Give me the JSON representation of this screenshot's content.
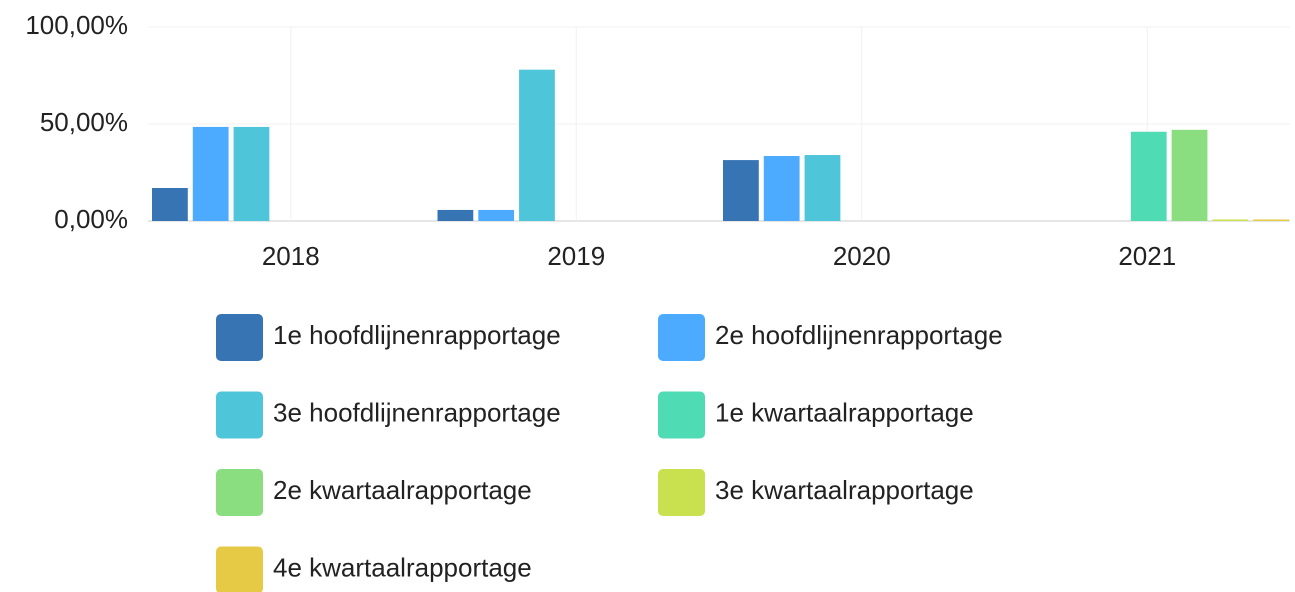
{
  "chart_data": {
    "type": "bar",
    "categories": [
      "2018",
      "2019",
      "2020",
      "2021"
    ],
    "series": [
      {
        "name": "1e hoofdlijnenrapportage",
        "color": "#3674b4",
        "values": [
          17,
          5.7,
          31.4,
          null
        ]
      },
      {
        "name": "2e hoofdlijnenrapportage",
        "color": "#4dabff",
        "values": [
          48.5,
          5.7,
          33.5,
          null
        ]
      },
      {
        "name": "3e hoofdlijnenrapportage",
        "color": "#4fc5d9",
        "values": [
          48.5,
          78,
          34,
          null
        ]
      },
      {
        "name": "1e kwartaalrapportage",
        "color": "#4fdbb3",
        "values": [
          null,
          null,
          null,
          46
        ]
      },
      {
        "name": "2e kwartaalrapportage",
        "color": "#8ade7f",
        "values": [
          null,
          null,
          null,
          47
        ]
      },
      {
        "name": "3e kwartaalrapportage",
        "color": "#c9e04f",
        "values": [
          null,
          null,
          null,
          0
        ]
      },
      {
        "name": "4e kwartaalrapportage",
        "color": "#e6ca45",
        "values": [
          null,
          null,
          null,
          0
        ]
      }
    ],
    "ylim": [
      0,
      100
    ],
    "yticks": [
      {
        "value": 0,
        "label": "0,00%"
      },
      {
        "value": 50,
        "label": "50,00%"
      },
      {
        "value": 100,
        "label": "100,00%"
      }
    ],
    "grid": true
  }
}
